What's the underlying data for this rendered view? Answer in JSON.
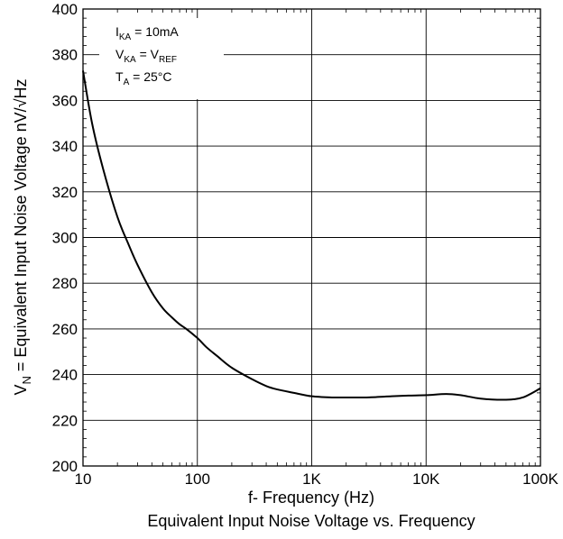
{
  "chart_data": {
    "type": "line",
    "caption": "Equivalent Input Noise Voltage vs. Frequency",
    "xlabel": "f- Frequency (Hz)",
    "ylabel": "V_N = Equivalent Input Noise Voltage nV/√Hz",
    "ylabel_parts": {
      "main": "V",
      "sub": "N",
      "rest": " = Equivalent Input Noise Voltage nV/√Hz"
    },
    "xscale": "log",
    "xlim": [
      10,
      100000
    ],
    "ylim": [
      200,
      400
    ],
    "x_ticks": [
      10,
      100,
      1000,
      10000,
      100000
    ],
    "x_tick_labels": [
      "10",
      "100",
      "1K",
      "10K",
      "100K"
    ],
    "y_ticks": [
      200,
      220,
      240,
      260,
      280,
      300,
      320,
      340,
      360,
      380,
      400
    ],
    "y_tick_labels": [
      "200",
      "220",
      "240",
      "260",
      "280",
      "300",
      "320",
      "340",
      "360",
      "380",
      "400"
    ],
    "grid": true,
    "annotations": [
      {
        "main": "I",
        "sub": "KA",
        "rest": " = 10mA"
      },
      {
        "main": "V",
        "sub": "KA",
        "rest": " = V",
        "sub2": "REF"
      },
      {
        "main": "T",
        "sub": "A",
        "rest": " = 25°C"
      }
    ],
    "series": [
      {
        "color": "#000000",
        "x": [
          10,
          12,
          15,
          20,
          25,
          30,
          40,
          50,
          60,
          70,
          80,
          100,
          120,
          150,
          200,
          300,
          400,
          500,
          700,
          1000,
          1500,
          2000,
          3000,
          5000,
          7000,
          10000,
          15000,
          20000,
          30000,
          50000,
          70000,
          100000
        ],
        "y": [
          373,
          350,
          330,
          309,
          297,
          288,
          276,
          269,
          265,
          262,
          260,
          256,
          252,
          248,
          243,
          238,
          235,
          233.5,
          232,
          230.5,
          230,
          230,
          230,
          230.5,
          230.8,
          231,
          231.5,
          231,
          229.5,
          229,
          230,
          234
        ]
      }
    ]
  }
}
